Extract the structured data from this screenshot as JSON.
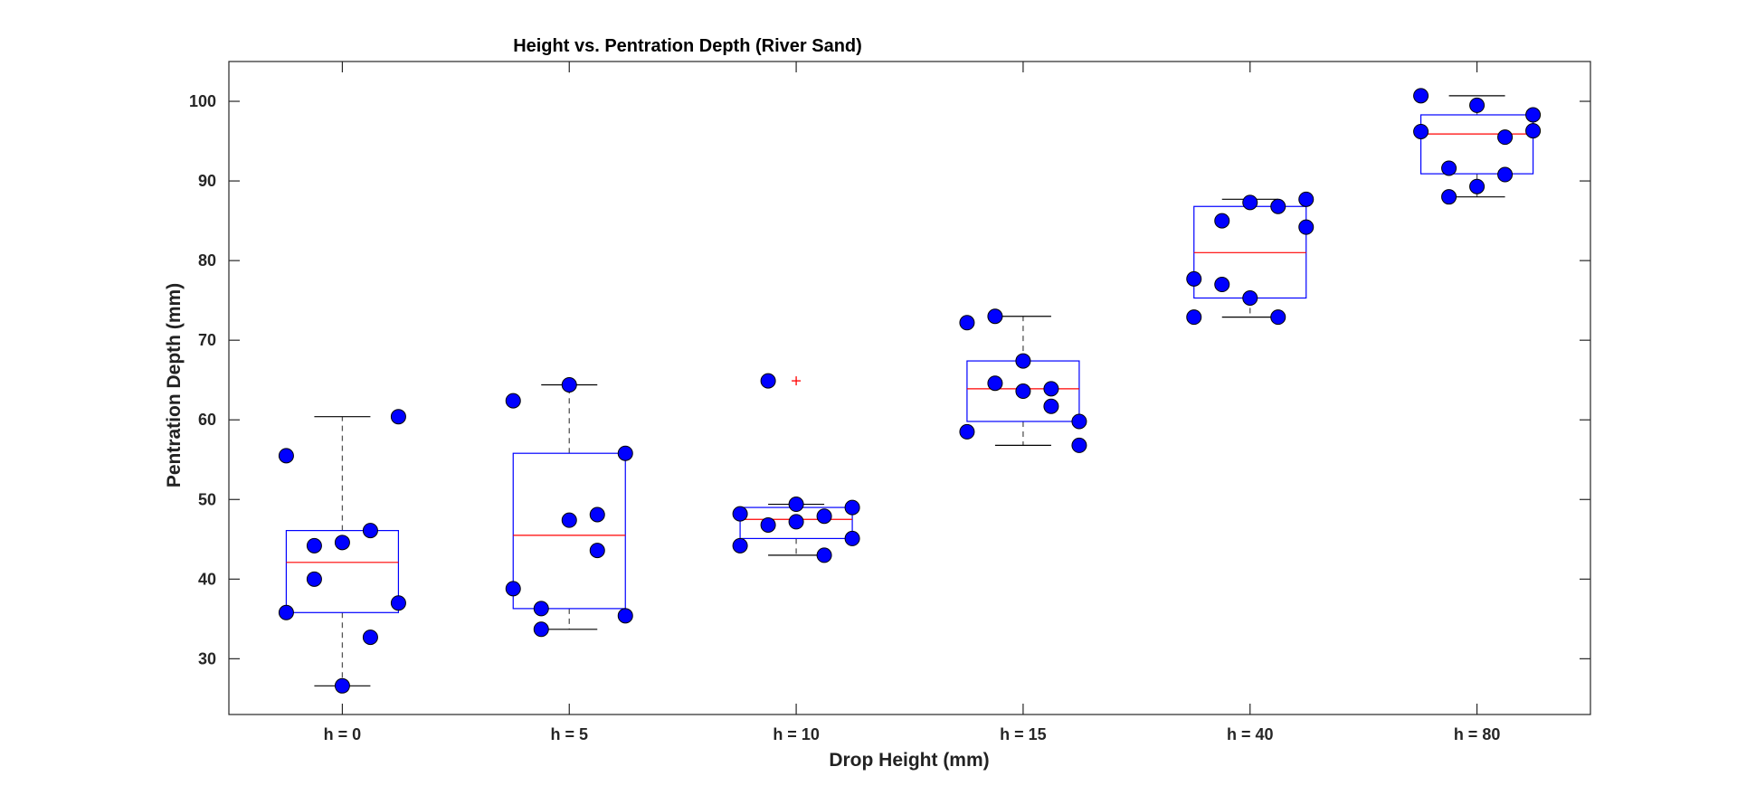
{
  "chart_data": {
    "type": "box",
    "title": "Height vs. Pentration Depth (River Sand)",
    "xlabel": "Drop Height (mm)",
    "ylabel": "Pentration Depth (mm)",
    "ylim": [
      23,
      105
    ],
    "yticks": [
      30,
      40,
      50,
      60,
      70,
      80,
      90,
      100
    ],
    "grid": false,
    "legend": "none",
    "colors": {
      "box": "#0000ff",
      "median": "#ff0000",
      "whisker": "#000000",
      "whisker_dash": "#555555",
      "outlier": "#ff0000",
      "point_fill": "#0000ff",
      "point_stroke": "#000000",
      "frame": "#262626"
    },
    "categories": [
      "h = 0",
      "h = 5",
      "h = 10",
      "h = 15",
      "h = 40",
      "h = 80"
    ],
    "boxes": [
      {
        "q1": 35.8,
        "median": 42.1,
        "q3": 46.1,
        "whisker_low": 26.6,
        "whisker_high": 60.4,
        "outliers": []
      },
      {
        "q1": 36.3,
        "median": 45.5,
        "q3": 55.8,
        "whisker_low": 33.7,
        "whisker_high": 64.4,
        "outliers": []
      },
      {
        "q1": 45.1,
        "median": 47.5,
        "q3": 49.0,
        "whisker_low": 43.0,
        "whisker_high": 49.4,
        "outliers": [
          64.9
        ]
      },
      {
        "q1": 59.8,
        "median": 63.9,
        "q3": 67.4,
        "whisker_low": 56.8,
        "whisker_high": 73.0,
        "outliers": []
      },
      {
        "q1": 75.3,
        "median": 81.0,
        "q3": 86.8,
        "whisker_low": 72.9,
        "whisker_high": 87.7,
        "outliers": []
      },
      {
        "q1": 90.9,
        "median": 95.9,
        "q3": 98.3,
        "whisker_low": 88.0,
        "whisker_high": 100.7,
        "outliers": []
      }
    ],
    "points": [
      [
        [
          -0.5,
          55.5
        ],
        [
          -0.5,
          35.8
        ],
        [
          -0.25,
          44.2
        ],
        [
          -0.25,
          40.0
        ],
        [
          0,
          44.6
        ],
        [
          0,
          26.6
        ],
        [
          0.25,
          46.1
        ],
        [
          0.25,
          32.7
        ],
        [
          0.5,
          60.4
        ],
        [
          0.5,
          37.0
        ]
      ],
      [
        [
          -0.5,
          62.4
        ],
        [
          -0.5,
          38.8
        ],
        [
          -0.25,
          36.3
        ],
        [
          -0.25,
          33.7
        ],
        [
          0,
          64.4
        ],
        [
          0,
          47.4
        ],
        [
          0.25,
          48.1
        ],
        [
          0.25,
          43.6
        ],
        [
          0.5,
          55.8
        ],
        [
          0.5,
          35.4
        ]
      ],
      [
        [
          -0.5,
          48.2
        ],
        [
          -0.5,
          44.2
        ],
        [
          -0.25,
          64.9
        ],
        [
          -0.25,
          46.8
        ],
        [
          0,
          49.4
        ],
        [
          0,
          47.2
        ],
        [
          0.25,
          47.9
        ],
        [
          0.25,
          43.0
        ],
        [
          0.5,
          49.0
        ],
        [
          0.5,
          45.1
        ]
      ],
      [
        [
          -0.5,
          72.2
        ],
        [
          -0.5,
          58.5
        ],
        [
          -0.25,
          73.0
        ],
        [
          -0.25,
          64.6
        ],
        [
          0,
          67.4
        ],
        [
          0,
          63.6
        ],
        [
          0.25,
          63.9
        ],
        [
          0.25,
          61.7
        ],
        [
          0.5,
          59.8
        ],
        [
          0.5,
          56.8
        ]
      ],
      [
        [
          -0.5,
          77.7
        ],
        [
          -0.5,
          72.9
        ],
        [
          -0.25,
          85.0
        ],
        [
          -0.25,
          77.0
        ],
        [
          0,
          87.3
        ],
        [
          0,
          75.3
        ],
        [
          0.25,
          86.8
        ],
        [
          0.25,
          72.9
        ],
        [
          0.5,
          87.7
        ],
        [
          0.5,
          84.2
        ]
      ],
      [
        [
          -0.5,
          100.7
        ],
        [
          -0.5,
          96.2
        ],
        [
          -0.25,
          91.6
        ],
        [
          -0.25,
          88.0
        ],
        [
          0,
          99.5
        ],
        [
          0,
          89.3
        ],
        [
          0.25,
          95.5
        ],
        [
          0.25,
          90.8
        ],
        [
          0.5,
          98.3
        ],
        [
          0.5,
          96.3
        ]
      ]
    ]
  }
}
